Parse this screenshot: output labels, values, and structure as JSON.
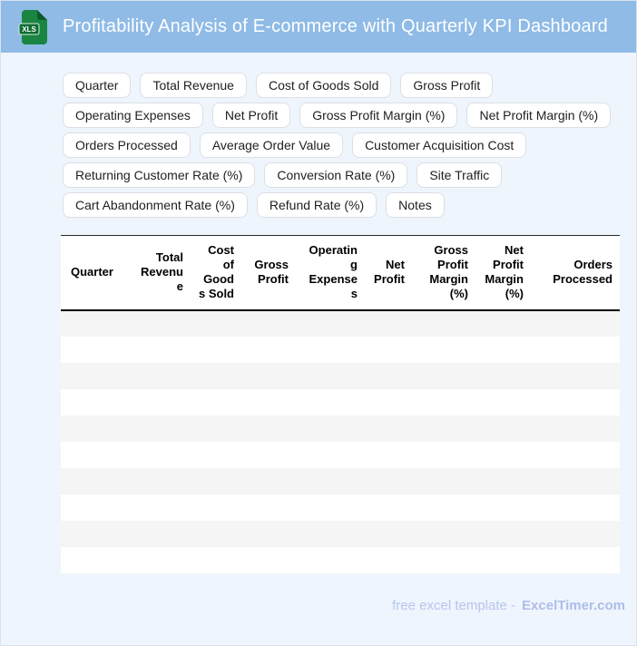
{
  "header": {
    "title": "Profitability Analysis of E-commerce with Quarterly KPI Dashboard",
    "icon_label": "XLS",
    "bar_color": "#8fbbe6",
    "icon_color": "#1a8441"
  },
  "chips": [
    "Quarter",
    "Total Revenue",
    "Cost of Goods Sold",
    "Gross Profit",
    "Operating Expenses",
    "Net Profit",
    "Gross Profit Margin (%)",
    "Net Profit Margin (%)",
    "Orders Processed",
    "Average Order Value",
    "Customer Acquisition Cost",
    "Returning Customer Rate (%)",
    "Conversion Rate (%)",
    "Site Traffic",
    "Cart Abandonment Rate (%)",
    "Refund Rate (%)",
    "Notes"
  ],
  "table": {
    "columns": [
      "Quarter",
      "Total Revenue",
      "Cost of Goods Sold",
      "Gross Profit",
      "Operating Expenses",
      "Net Profit",
      "Gross Profit Margin (%)",
      "Net Profit Margin (%)",
      "Orders Processed"
    ],
    "empty_row_count": 10
  },
  "footer": {
    "text": "free excel template -",
    "brand": "ExcelTimer.com"
  }
}
